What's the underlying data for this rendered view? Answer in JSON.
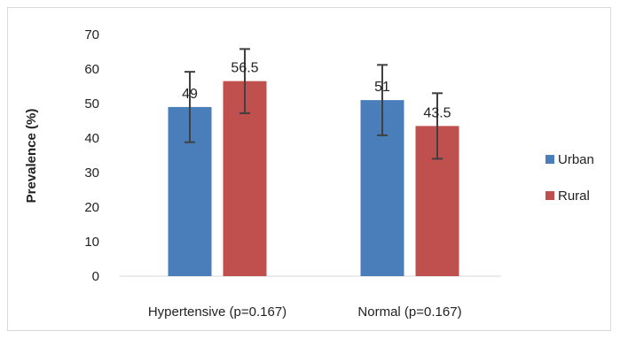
{
  "chart_data": {
    "type": "bar",
    "title": "",
    "xlabel": "",
    "ylabel": "Prevalence (%)",
    "ylim": [
      0,
      70
    ],
    "yticks": [
      0,
      10,
      20,
      30,
      40,
      50,
      60,
      70
    ],
    "grid": false,
    "legend_position": "right",
    "categories": [
      "Hypertensive (p=0.167)",
      "Normal (p=0.167)"
    ],
    "series": [
      {
        "name": "Urban",
        "color": "#4a7ebb",
        "values": [
          49,
          51
        ],
        "error": [
          10.2,
          10.2
        ],
        "labels": [
          "49",
          "51"
        ]
      },
      {
        "name": "Rural",
        "color": "#c0504d",
        "values": [
          56.5,
          43.5
        ],
        "error": [
          9.3,
          9.5
        ],
        "labels": [
          "56.5",
          "43.5"
        ]
      }
    ]
  }
}
